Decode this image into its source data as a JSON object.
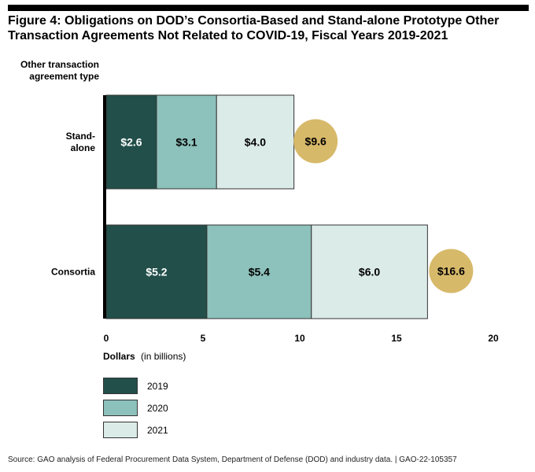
{
  "figure": {
    "title": "Figure 4: Obligations on DOD’s Consortia-Based and Stand-alone Prototype Other Transaction Agreements Not Related to COVID-19, Fiscal Years 2019-2021",
    "source": "Source: GAO analysis of Federal Procurement Data System, Department of Defense (DOD) and industry data. | GAO-22-105357"
  },
  "chart_data": {
    "type": "bar",
    "orientation": "horizontal",
    "stacked": true,
    "ylabel": "Other transaction agreement type",
    "xlabel": "Dollars",
    "xlabel_unit": "(in billions)",
    "xlim": [
      0,
      20
    ],
    "xticks": [
      "0",
      "5",
      "10",
      "15",
      "20"
    ],
    "categories": [
      "Stand-alone",
      "Consortia"
    ],
    "category_labels": [
      [
        "Stand-",
        "alone"
      ],
      [
        "Consortia"
      ]
    ],
    "series": [
      {
        "name": "2019",
        "color": "#224f4a",
        "values": [
          2.6,
          5.2
        ],
        "labels": [
          "$2.6",
          "$5.2"
        ],
        "label_color": "#ffffff"
      },
      {
        "name": "2020",
        "color": "#8dc1bb",
        "values": [
          3.1,
          5.4
        ],
        "labels": [
          "$3.1",
          "$5.4"
        ],
        "label_color": "#000000"
      },
      {
        "name": "2021",
        "color": "#dbebe8",
        "values": [
          4.0,
          6.0
        ],
        "labels": [
          "$4.0",
          "$6.0"
        ],
        "label_color": "#000000"
      }
    ],
    "totals": [
      9.6,
      16.6
    ],
    "total_labels": [
      "$9.6",
      "$16.6"
    ],
    "total_color": "#d7b96a",
    "legend_position": "bottom-left",
    "grid": false
  }
}
